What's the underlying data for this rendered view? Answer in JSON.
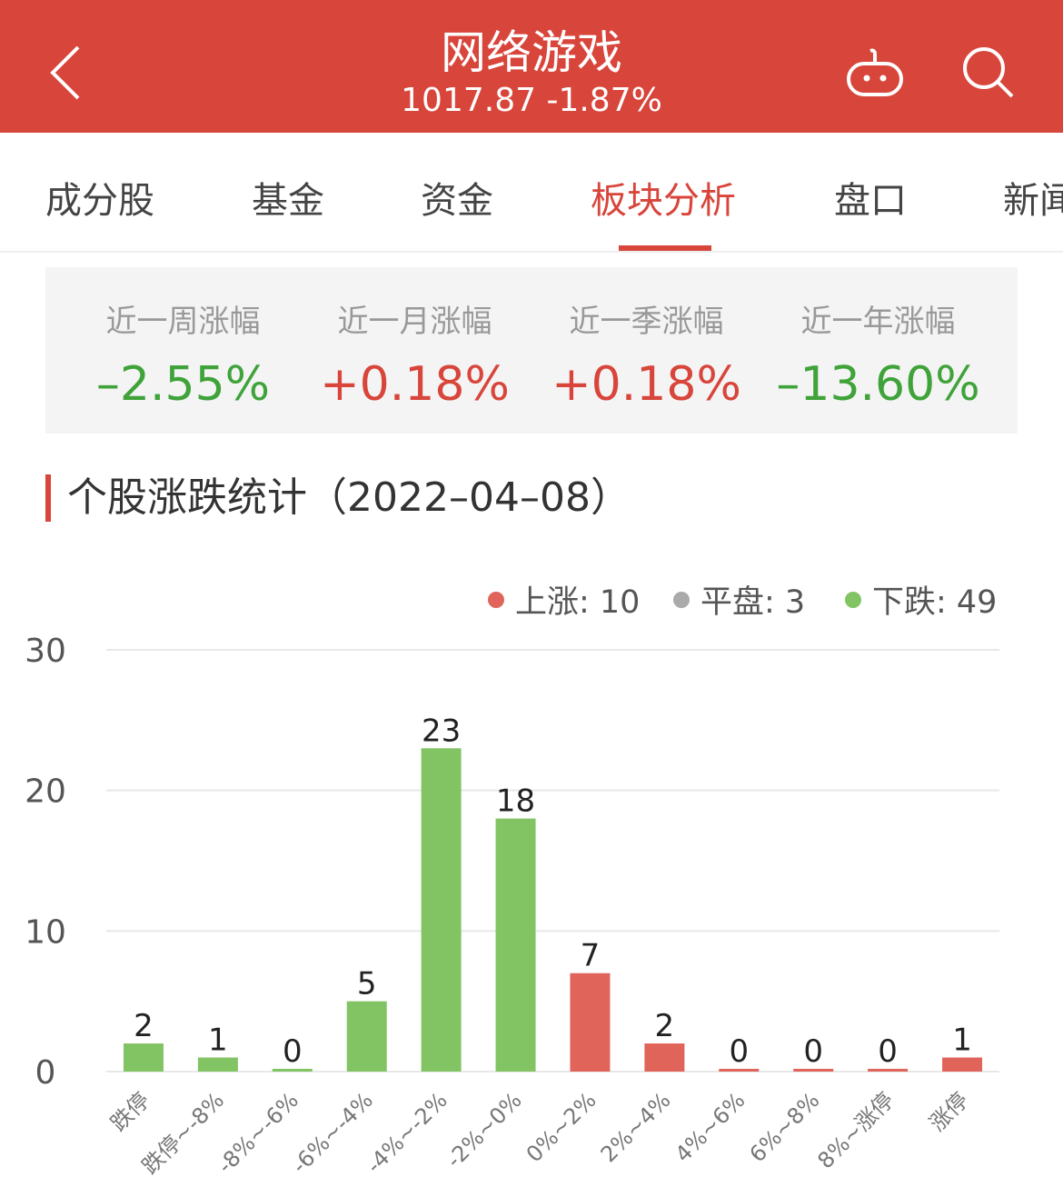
{
  "header": {
    "title": "网络游戏",
    "subtitle": "1017.87 -1.87%",
    "icons": [
      "back-chevron-icon",
      "robot-icon",
      "search-icon"
    ]
  },
  "tabs": [
    "成分股",
    "基金",
    "资金",
    "板块分析",
    "盘口",
    "新闻"
  ],
  "active_tab": "板块分析",
  "stats": [
    {
      "label": "近一周涨幅",
      "value": "–2.55%",
      "color": "#3fa33a"
    },
    {
      "label": "近一月涨幅",
      "value": "+0.18%",
      "color": "#d8453b"
    },
    {
      "label": "近一季涨幅",
      "value": "+0.18%",
      "color": "#d8453b"
    },
    {
      "label": "近一年涨幅",
      "value": "–13.60%",
      "color": "#3fa33a"
    }
  ],
  "section_title": "个股涨跌统计（2022–04–08）",
  "legend": [
    {
      "text": "上涨: 10",
      "color": "#e0645a"
    },
    {
      "text": "平盘: 3",
      "color": "#aaaaaa"
    },
    {
      "text": "下跌: 49",
      "color": "#82c464"
    }
  ],
  "chart_data": {
    "type": "bar",
    "categories": [
      "跌停",
      "跌停~-8%",
      "-8%~-6%",
      "-6%~-4%",
      "-4%~-2%",
      "-2%~0%",
      "0%~2%",
      "2%~4%",
      "4%~6%",
      "6%~8%",
      "8%~涨停",
      "涨停"
    ],
    "values": [
      2,
      1,
      0,
      5,
      23,
      18,
      7,
      2,
      0,
      0,
      0,
      1
    ],
    "colors": [
      "#82c464",
      "#82c464",
      "#82c464",
      "#82c464",
      "#82c464",
      "#82c464",
      "#e0645a",
      "#e0645a",
      "#e0645a",
      "#e0645a",
      "#e0645a",
      "#e0645a"
    ],
    "ylim": [
      0,
      30
    ],
    "yticks": [
      "0",
      "10",
      "20",
      "30"
    ],
    "grid": true,
    "legend_position": "top-right"
  }
}
